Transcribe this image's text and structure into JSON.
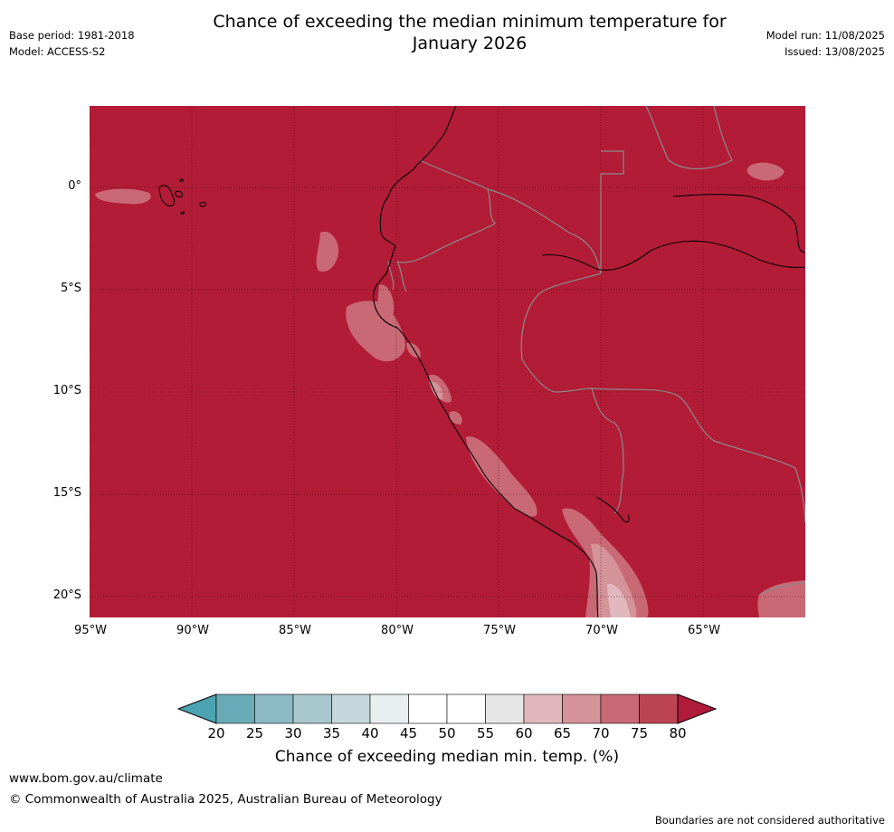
{
  "title_line1": "Chance of exceeding the median minimum temperature for",
  "title_line2": "January 2026",
  "base_period": "Base period: 1981-2018",
  "model": "Model: ACCESS-S2",
  "model_run": "Model run: 11/08/2025",
  "issued": "Issued: 13/08/2025",
  "map": {
    "lat_labels": [
      "0°",
      "5°S",
      "10°S",
      "15°S",
      "20°S"
    ],
    "lon_labels": [
      "95°W",
      "90°W",
      "85°W",
      "80°W",
      "75°W",
      "70°W",
      "65°W"
    ],
    "base_color": "#b31c37"
  },
  "colorbar": {
    "ticks": [
      "20",
      "25",
      "30",
      "35",
      "40",
      "45",
      "50",
      "55",
      "60",
      "65",
      "70",
      "75",
      "80"
    ],
    "low_extend_color": "#4ba3b1",
    "high_extend_color": "#b11b3a",
    "colors": [
      "#6aaab7",
      "#8bbac5",
      "#a9c8ce",
      "#c6d8dc",
      "#e9eff1",
      "#ffffff",
      "#ffffff",
      "#e6e6e6",
      "#e0b8be",
      "#d49299",
      "#c96975",
      "#bd4553"
    ],
    "label": "Chance of exceeding median min. temp. (%)"
  },
  "footer": {
    "url": "www.bom.gov.au/climate",
    "copyright": "© Commonwealth of Australia 2025, Australian Bureau of Meteorology",
    "disclaimer": "Boundaries are not considered authoritative"
  }
}
